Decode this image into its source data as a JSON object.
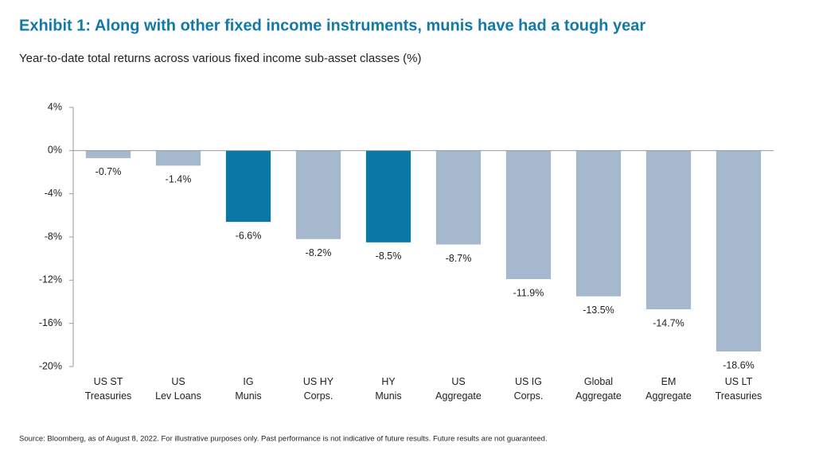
{
  "chart_data": {
    "type": "bar",
    "title": "Exhibit 1: Along with other fixed income instruments, munis have had a tough year",
    "subtitle": "Year-to-date total returns across various fixed income sub-asset classes (%)",
    "categories": [
      [
        "US ST",
        "Treasuries"
      ],
      [
        "US",
        "Lev Loans"
      ],
      [
        "IG",
        "Munis"
      ],
      [
        "US HY",
        "Corps."
      ],
      [
        "HY",
        "Munis"
      ],
      [
        "US",
        "Aggregate"
      ],
      [
        "US IG",
        "Corps."
      ],
      [
        "Global",
        "Aggregate"
      ],
      [
        "EM",
        "Aggregate"
      ],
      [
        "US LT",
        "Treasuries"
      ]
    ],
    "values": [
      -0.7,
      -1.4,
      -6.6,
      -8.2,
      -8.5,
      -8.7,
      -11.9,
      -13.5,
      -14.7,
      -18.6
    ],
    "value_labels": [
      "-0.7%",
      "-1.4%",
      "-6.6%",
      "-8.2%",
      "-8.5%",
      "-8.7%",
      "-11.9%",
      "-13.5%",
      "-14.7%",
      "-18.6%"
    ],
    "colors": [
      "#a6b8cd",
      "#a6b8cd",
      "#0a77a6",
      "#a6b8cd",
      "#0a77a6",
      "#a6b8cd",
      "#a6b8cd",
      "#a6b8cd",
      "#a6b8cd",
      "#a6b8cd"
    ],
    "ylim": [
      -20,
      4
    ],
    "yticks": [
      {
        "value": 4,
        "label": "4%"
      },
      {
        "value": 0,
        "label": "0%"
      },
      {
        "value": -4,
        "label": "-4%"
      },
      {
        "value": -8,
        "label": "-8%"
      },
      {
        "value": -12,
        "label": "-12%"
      },
      {
        "value": -16,
        "label": "-16%"
      },
      {
        "value": -20,
        "label": "-20%"
      }
    ],
    "grid": false,
    "source": "Source: Bloomberg, as of August 8, 2022. For illustrative purposes only. Past performance is not indicative of future results. Future results are not guaranteed."
  }
}
